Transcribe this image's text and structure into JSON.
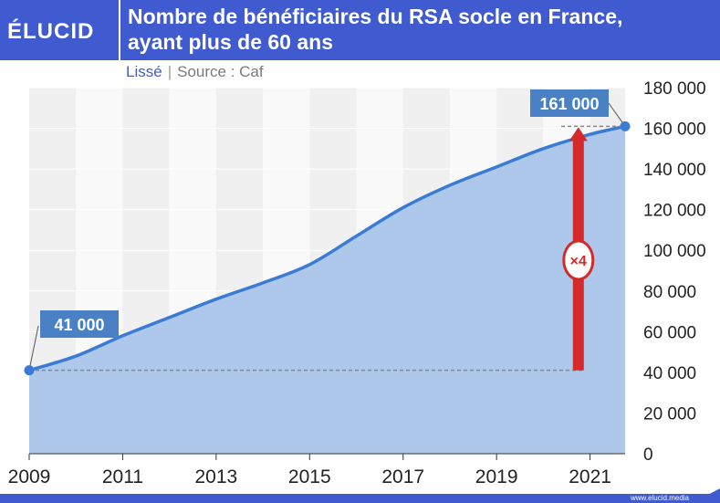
{
  "brand": {
    "logo": "ÉLUCID",
    "website": "www.elucid.media"
  },
  "header": {
    "title_line1": "Nombre de bénéficiaires du RSA socle en France,",
    "title_line2": "ayant plus de 60 ans"
  },
  "subtitle": {
    "mode": "Lissé",
    "separator": "|",
    "source": "Source : Caf"
  },
  "colors": {
    "accent": "#3f5bcf",
    "line": "#3a7bd5",
    "area": "#adc8eb",
    "arrow": "#d42a2a",
    "label_bg": "#4a80c4"
  },
  "chart_data": {
    "type": "area",
    "x": [
      2009,
      2010,
      2011,
      2012,
      2013,
      2014,
      2015,
      2016,
      2017,
      2018,
      2019,
      2020,
      2021,
      2021.75
    ],
    "y": [
      41000,
      48000,
      58000,
      67000,
      76000,
      84000,
      93000,
      107000,
      121000,
      132000,
      141000,
      150000,
      157000,
      161000
    ],
    "xlim": [
      2009,
      2021.75
    ],
    "ylim": [
      0,
      180000
    ],
    "x_ticks": [
      2009,
      2011,
      2013,
      2015,
      2017,
      2019,
      2021
    ],
    "x_tick_labels": [
      "2009",
      "2011",
      "2013",
      "2015",
      "2017",
      "2019",
      "2021"
    ],
    "y_ticks": [
      0,
      20000,
      40000,
      60000,
      80000,
      100000,
      120000,
      140000,
      160000,
      180000
    ],
    "y_tick_labels": [
      "0",
      "20 000",
      "40 000",
      "60 000",
      "80 000",
      "100 000",
      "120 000",
      "140 000",
      "160 000",
      "180 000"
    ],
    "y_axis_side": "right",
    "background_bands": "alternating yearly",
    "annotations": {
      "start": {
        "label": "41 000",
        "value": 41000
      },
      "end": {
        "label": "161 000",
        "value": 161000
      },
      "multiplier": {
        "label": "×4",
        "x": 2020.75,
        "from": 41000,
        "to": 161000
      }
    }
  }
}
